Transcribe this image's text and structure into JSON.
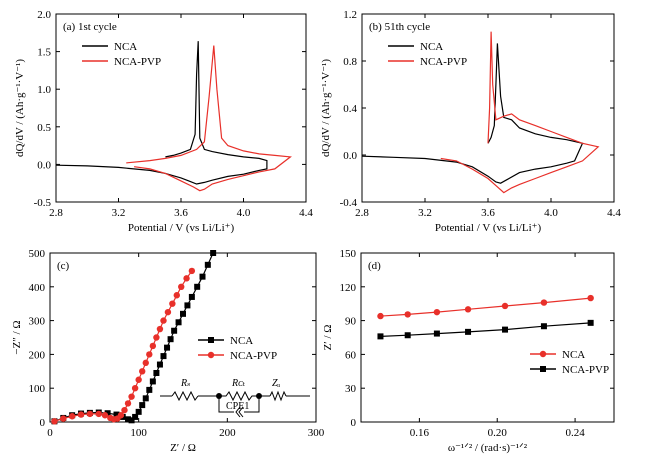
{
  "chart_data": [
    {
      "type": "line",
      "panel_label": "(a) 1st cycle",
      "xlabel": "Potential / V (vs Li/Li⁺)",
      "ylabel": "dQ/dV / (Ah·g⁻¹·V⁻¹)",
      "xlim": [
        2.8,
        4.4
      ],
      "ylim": [
        -0.5,
        2.0
      ],
      "x_ticks": [
        "2.8",
        "3.2",
        "3.6",
        "4.0",
        "4.4"
      ],
      "y_ticks": [
        "-0.5",
        "0.0",
        "0.5",
        "1.0",
        "1.5",
        "2.0"
      ],
      "legend_position": "top-left",
      "series": [
        {
          "name": "NCA",
          "color": "#000000",
          "points": [
            [
              2.8,
              -0.01
            ],
            [
              3.0,
              -0.02
            ],
            [
              3.2,
              -0.04
            ],
            [
              3.4,
              -0.08
            ],
            [
              3.5,
              -0.12
            ],
            [
              3.6,
              -0.18
            ],
            [
              3.65,
              -0.22
            ],
            [
              3.7,
              -0.26
            ],
            [
              3.75,
              -0.24
            ],
            [
              3.8,
              -0.21
            ],
            [
              3.9,
              -0.16
            ],
            [
              4.0,
              -0.13
            ],
            [
              4.1,
              -0.08
            ],
            [
              4.15,
              -0.06
            ],
            [
              4.15,
              0.05
            ],
            [
              4.1,
              0.08
            ],
            [
              4.0,
              0.1
            ],
            [
              3.9,
              0.13
            ],
            [
              3.8,
              0.17
            ],
            [
              3.75,
              0.2
            ],
            [
              3.72,
              0.35
            ],
            [
              3.71,
              1.64
            ],
            [
              3.7,
              1.2
            ],
            [
              3.69,
              0.4
            ],
            [
              3.66,
              0.2
            ],
            [
              3.6,
              0.15
            ],
            [
              3.55,
              0.12
            ],
            [
              3.5,
              0.1
            ]
          ]
        },
        {
          "name": "NCA-PVP",
          "color": "#e8302a",
          "points": [
            [
              3.25,
              0.02
            ],
            [
              3.4,
              0.05
            ],
            [
              3.5,
              0.08
            ],
            [
              3.6,
              0.12
            ],
            [
              3.7,
              0.2
            ],
            [
              3.75,
              0.3
            ],
            [
              3.78,
              0.9
            ],
            [
              3.81,
              1.58
            ],
            [
              3.83,
              1.0
            ],
            [
              3.86,
              0.35
            ],
            [
              3.9,
              0.25
            ],
            [
              4.0,
              0.18
            ],
            [
              4.1,
              0.14
            ],
            [
              4.2,
              0.12
            ],
            [
              4.3,
              0.1
            ],
            [
              4.2,
              -0.06
            ],
            [
              4.1,
              -0.1
            ],
            [
              4.0,
              -0.15
            ],
            [
              3.9,
              -0.2
            ],
            [
              3.8,
              -0.26
            ],
            [
              3.75,
              -0.33
            ],
            [
              3.72,
              -0.35
            ],
            [
              3.68,
              -0.3
            ],
            [
              3.6,
              -0.22
            ],
            [
              3.5,
              -0.12
            ],
            [
              3.4,
              -0.06
            ],
            [
              3.3,
              -0.03
            ]
          ]
        }
      ]
    },
    {
      "type": "line",
      "panel_label": "(b) 51th cycle",
      "xlabel": "Potential / V (vs Li/Li⁺)",
      "ylabel": "dQ/dV / (Ah·g⁻¹·V⁻¹)",
      "xlim": [
        2.8,
        4.4
      ],
      "ylim": [
        -0.4,
        1.2
      ],
      "x_ticks": [
        "2.8",
        "3.2",
        "3.6",
        "4.0",
        "4.4"
      ],
      "y_ticks": [
        "-0.4",
        "0.0",
        "0.4",
        "0.8",
        "1.2"
      ],
      "legend_position": "top-left",
      "series": [
        {
          "name": "NCA",
          "color": "#000000",
          "points": [
            [
              2.8,
              -0.01
            ],
            [
              3.0,
              -0.02
            ],
            [
              3.2,
              -0.03
            ],
            [
              3.4,
              -0.06
            ],
            [
              3.5,
              -0.1
            ],
            [
              3.6,
              -0.18
            ],
            [
              3.65,
              -0.23
            ],
            [
              3.68,
              -0.24
            ],
            [
              3.72,
              -0.21
            ],
            [
              3.8,
              -0.15
            ],
            [
              3.9,
              -0.12
            ],
            [
              4.0,
              -0.1
            ],
            [
              4.1,
              -0.07
            ],
            [
              4.15,
              -0.05
            ],
            [
              4.2,
              0.1
            ],
            [
              4.1,
              0.13
            ],
            [
              4.0,
              0.15
            ],
            [
              3.9,
              0.18
            ],
            [
              3.8,
              0.23
            ],
            [
              3.75,
              0.3
            ],
            [
              3.7,
              0.32
            ],
            [
              3.68,
              0.5
            ],
            [
              3.66,
              0.95
            ],
            [
              3.65,
              0.6
            ],
            [
              3.64,
              0.25
            ],
            [
              3.62,
              0.15
            ],
            [
              3.6,
              0.1
            ]
          ]
        },
        {
          "name": "NCA-PVP",
          "color": "#e8302a",
          "points": [
            [
              3.6,
              0.1
            ],
            [
              3.61,
              0.4
            ],
            [
              3.62,
              1.05
            ],
            [
              3.63,
              0.6
            ],
            [
              3.65,
              0.3
            ],
            [
              3.7,
              0.33
            ],
            [
              3.75,
              0.35
            ],
            [
              3.8,
              0.3
            ],
            [
              3.9,
              0.25
            ],
            [
              4.0,
              0.2
            ],
            [
              4.1,
              0.15
            ],
            [
              4.2,
              0.1
            ],
            [
              4.3,
              0.07
            ],
            [
              4.2,
              -0.05
            ],
            [
              4.1,
              -0.1
            ],
            [
              4.0,
              -0.15
            ],
            [
              3.9,
              -0.2
            ],
            [
              3.8,
              -0.25
            ],
            [
              3.75,
              -0.28
            ],
            [
              3.7,
              -0.32
            ],
            [
              3.65,
              -0.26
            ],
            [
              3.6,
              -0.2
            ],
            [
              3.5,
              -0.12
            ],
            [
              3.4,
              -0.05
            ],
            [
              3.3,
              -0.03
            ]
          ]
        }
      ]
    },
    {
      "type": "scatter",
      "panel_label": "(c)",
      "xlabel": "Z′ / Ω",
      "ylabel": "−Z″ / Ω",
      "xlim": [
        0,
        300
      ],
      "ylim": [
        0,
        500
      ],
      "x_ticks": [
        "0",
        "100",
        "200",
        "300"
      ],
      "y_ticks": [
        "0",
        "100",
        "200",
        "300",
        "400",
        "500"
      ],
      "legend_position": "middle-right",
      "series": [
        {
          "name": "NCA",
          "color": "#000000",
          "marker": "square",
          "points": [
            [
              5,
              2
            ],
            [
              15,
              12
            ],
            [
              25,
              20
            ],
            [
              35,
              25
            ],
            [
              45,
              27
            ],
            [
              55,
              28
            ],
            [
              65,
              26
            ],
            [
              75,
              22
            ],
            [
              82,
              15
            ],
            [
              88,
              8
            ],
            [
              92,
              5
            ],
            [
              96,
              15
            ],
            [
              100,
              30
            ],
            [
              104,
              50
            ],
            [
              108,
              70
            ],
            [
              112,
              95
            ],
            [
              116,
              120
            ],
            [
              120,
              145
            ],
            [
              124,
              170
            ],
            [
              128,
              195
            ],
            [
              132,
              220
            ],
            [
              136,
              245
            ],
            [
              140,
              270
            ],
            [
              145,
              295
            ],
            [
              150,
              320
            ],
            [
              155,
              345
            ],
            [
              160,
              370
            ],
            [
              166,
              400
            ],
            [
              172,
              430
            ],
            [
              178,
              465
            ],
            [
              184,
              500
            ]
          ]
        },
        {
          "name": "NCA-PVP",
          "color": "#e8302a",
          "marker": "circle",
          "points": [
            [
              5,
              2
            ],
            [
              15,
              10
            ],
            [
              25,
              17
            ],
            [
              35,
              22
            ],
            [
              45,
              24
            ],
            [
              55,
              24
            ],
            [
              62,
              20
            ],
            [
              68,
              12
            ],
            [
              72,
              8
            ],
            [
              76,
              10
            ],
            [
              80,
              20
            ],
            [
              84,
              35
            ],
            [
              88,
              55
            ],
            [
              92,
              75
            ],
            [
              96,
              100
            ],
            [
              100,
              125
            ],
            [
              104,
              150
            ],
            [
              108,
              175
            ],
            [
              112,
              200
            ],
            [
              116,
              225
            ],
            [
              120,
              250
            ],
            [
              124,
              275
            ],
            [
              128,
              300
            ],
            [
              133,
              325
            ],
            [
              138,
              350
            ],
            [
              143,
              375
            ],
            [
              148,
              400
            ],
            [
              154,
              425
            ],
            [
              160,
              447
            ]
          ]
        }
      ],
      "circuit_labels": [
        "Rₛ",
        "Rᴄₜ",
        "Zᵤ",
        "CPE1"
      ]
    },
    {
      "type": "scatter",
      "panel_label": "(d)",
      "xlabel": "ω⁻¹ᐟ² / (rad·s)⁻¹ᐟ²",
      "ylabel": "Z′ / Ω",
      "xlim": [
        0.13,
        0.26
      ],
      "ylim": [
        0,
        150
      ],
      "x_ticks": [
        "0.16",
        "0.20",
        "0.24"
      ],
      "y_ticks": [
        "0",
        "30",
        "60",
        "90",
        "120",
        "150"
      ],
      "legend_position": "bottom-right",
      "series": [
        {
          "name": "NCA",
          "color": "#e8302a",
          "marker": "circle",
          "points": [
            [
              0.14,
              94
            ],
            [
              0.154,
              95.5
            ],
            [
              0.169,
              97.5
            ],
            [
              0.185,
              100
            ],
            [
              0.204,
              103
            ],
            [
              0.224,
              106
            ],
            [
              0.248,
              110
            ]
          ]
        },
        {
          "name": "NCA-PVP",
          "color": "#000000",
          "marker": "square",
          "points": [
            [
              0.14,
              76
            ],
            [
              0.154,
              77
            ],
            [
              0.169,
              78.5
            ],
            [
              0.185,
              80
            ],
            [
              0.204,
              82
            ],
            [
              0.224,
              85
            ],
            [
              0.248,
              88
            ]
          ]
        }
      ]
    }
  ]
}
